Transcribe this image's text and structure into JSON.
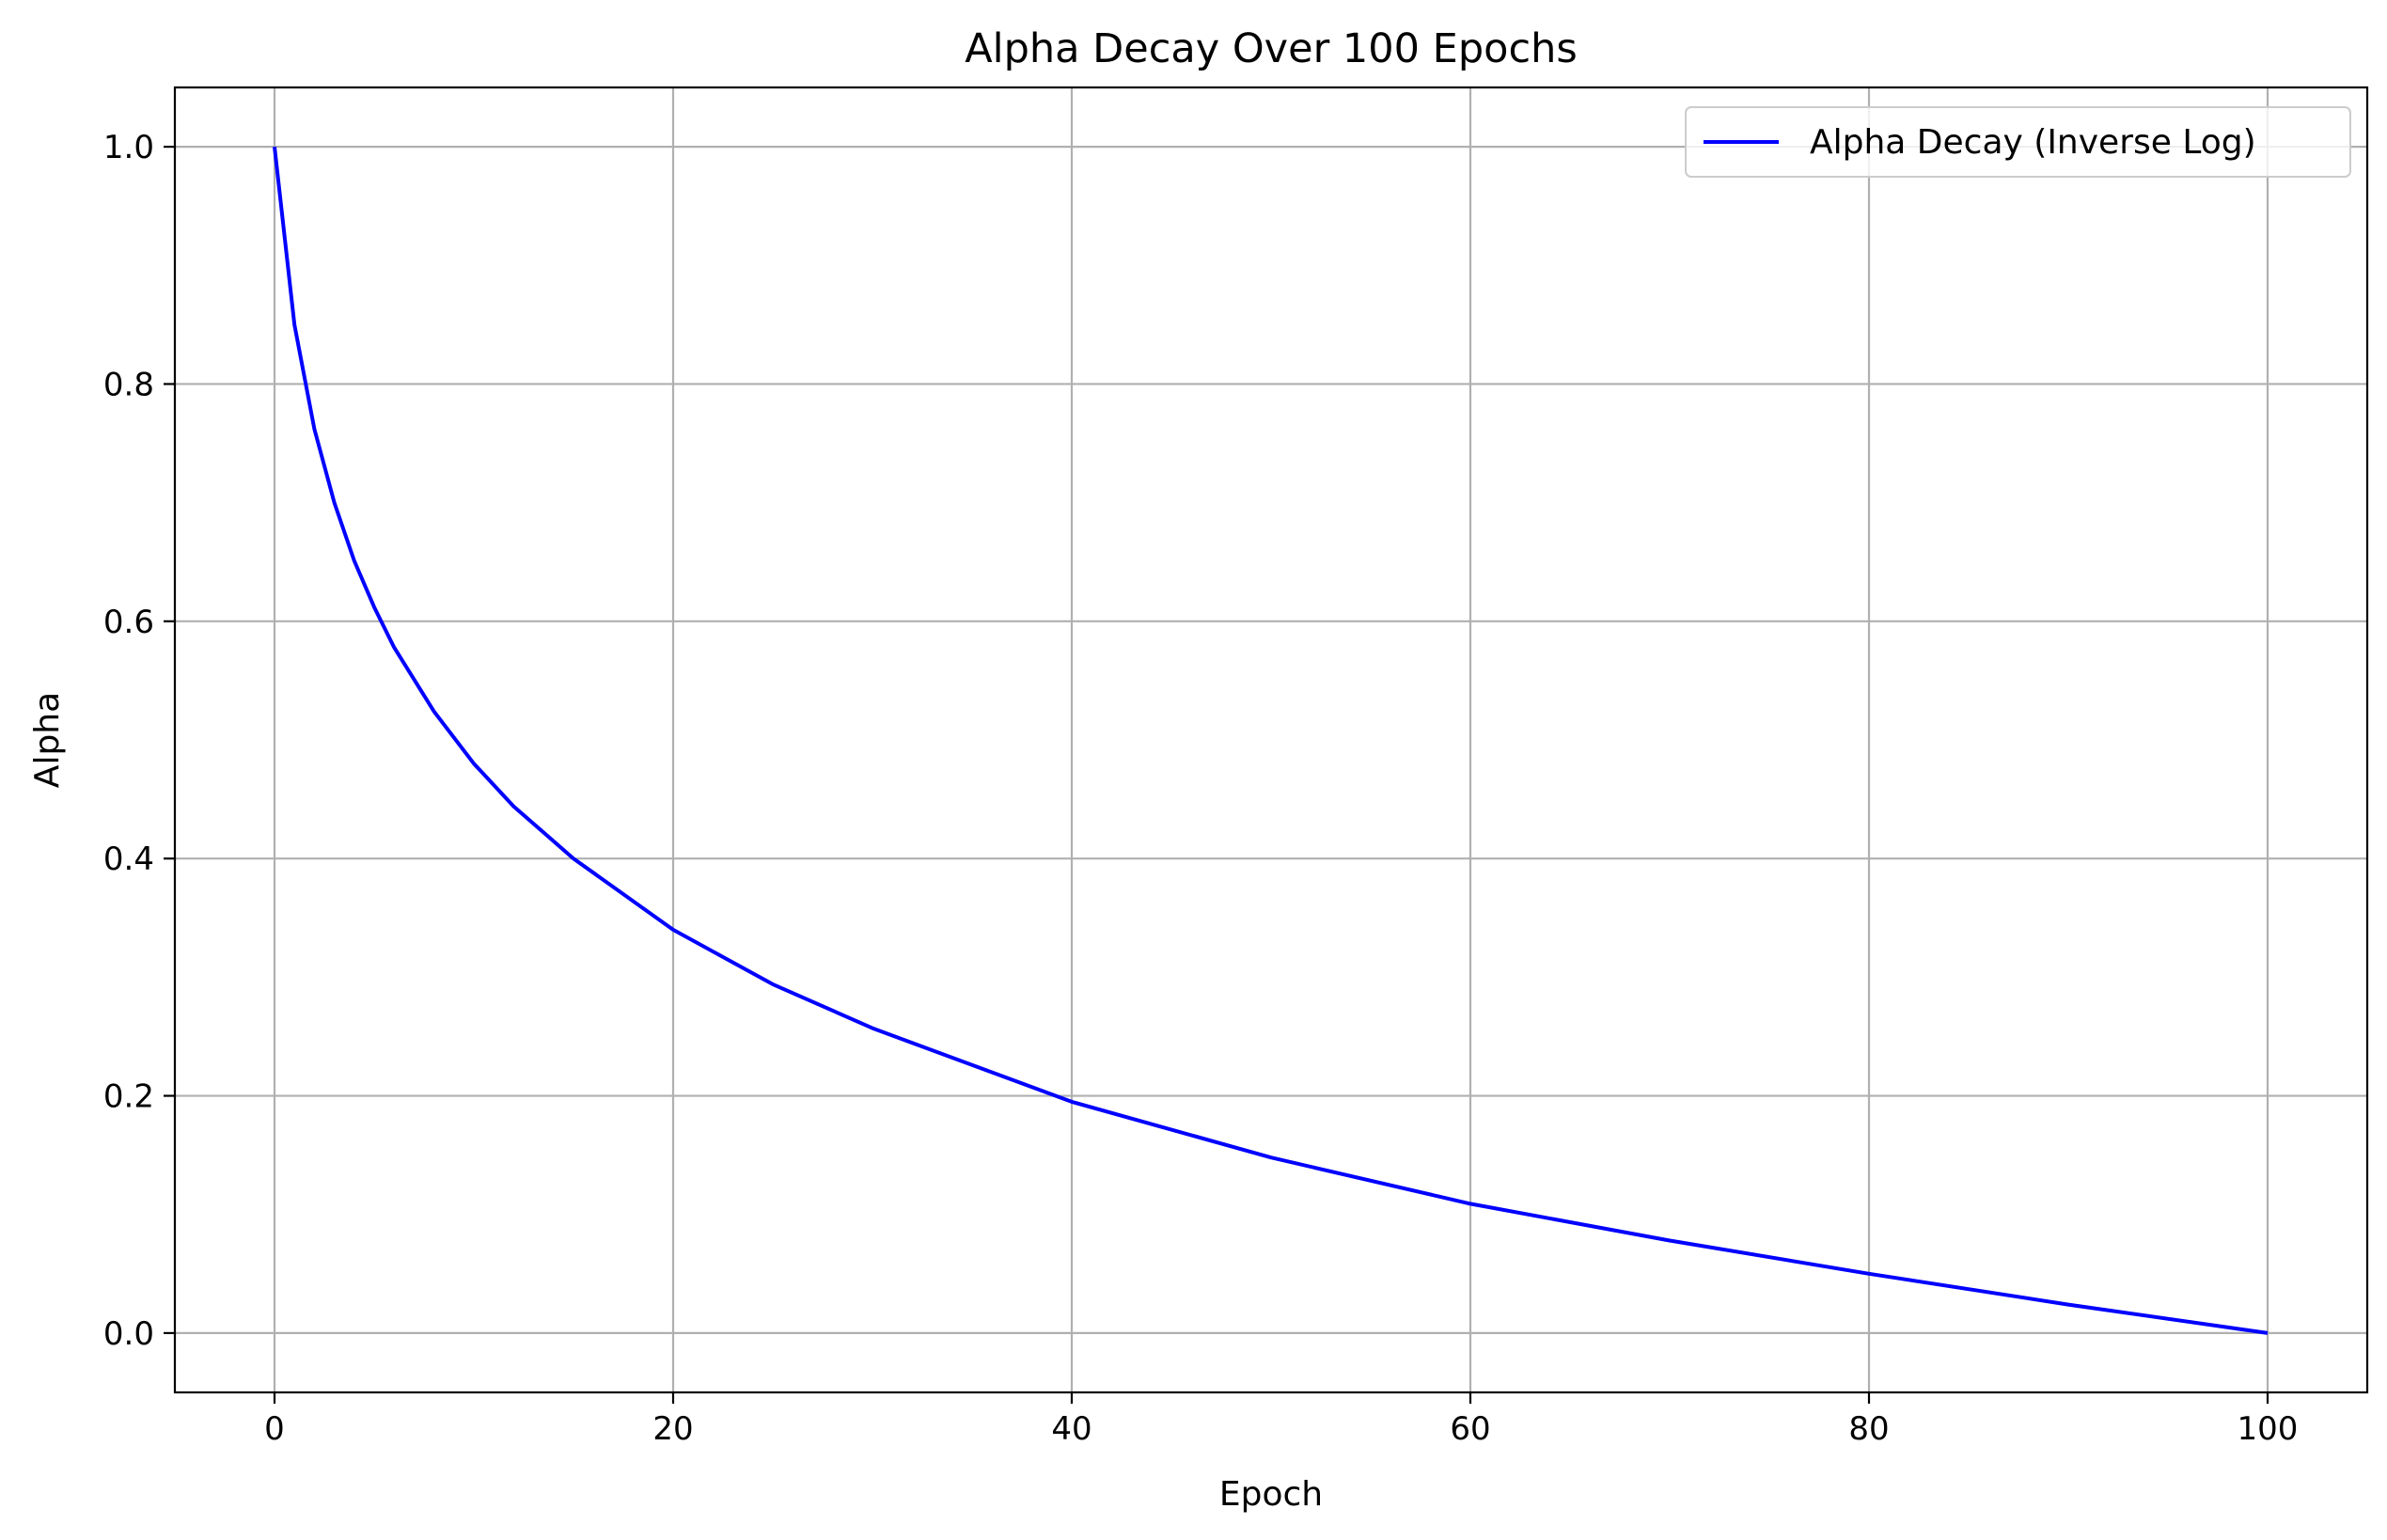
{
  "chart_data": {
    "type": "line",
    "title": "Alpha Decay Over 100 Epochs",
    "xlabel": "Epoch",
    "ylabel": "Alpha",
    "xlim": [
      -5,
      105
    ],
    "ylim": [
      -0.05,
      1.05
    ],
    "xticks": [
      0,
      20,
      40,
      60,
      80,
      100
    ],
    "xtick_labels": [
      "0",
      "20",
      "40",
      "60",
      "80",
      "100"
    ],
    "yticks": [
      0.0,
      0.2,
      0.4,
      0.6,
      0.8,
      1.0
    ],
    "ytick_labels": [
      "0.0",
      "0.2",
      "0.4",
      "0.6",
      "0.8",
      "1.0"
    ],
    "grid": true,
    "legend_position": "top-right",
    "series": [
      {
        "name": "Alpha Decay (Inverse Log)",
        "color": "#0000ff",
        "x": [
          0,
          1,
          2,
          3,
          4,
          5,
          6,
          8,
          10,
          12,
          15,
          20,
          25,
          30,
          40,
          50,
          60,
          70,
          80,
          90,
          100
        ],
        "y": [
          1.0,
          0.85,
          0.762,
          0.7,
          0.651,
          0.612,
          0.578,
          0.524,
          0.48,
          0.444,
          0.4,
          0.34,
          0.294,
          0.257,
          0.195,
          0.148,
          0.109,
          0.078,
          0.05,
          0.024,
          0.0
        ]
      }
    ]
  }
}
